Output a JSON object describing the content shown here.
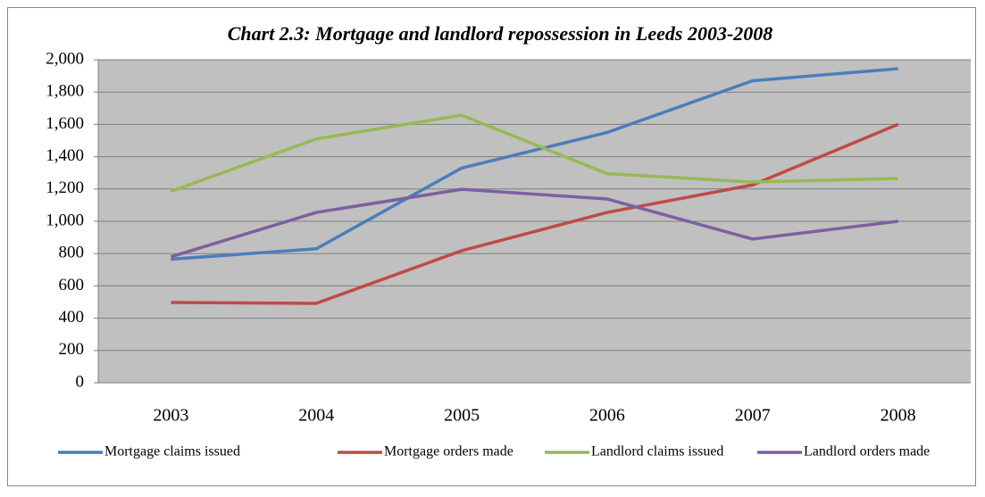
{
  "chart_data": {
    "type": "line",
    "title": "Chart 2.3: Mortgage and landlord repossession in Leeds 2003-2008",
    "categories": [
      "2003",
      "2004",
      "2005",
      "2006",
      "2007",
      "2008"
    ],
    "series": [
      {
        "name": "Mortgage claims issued",
        "color": "#4a7ebb",
        "values": [
          765,
          830,
          1330,
          1550,
          1870,
          1945
        ]
      },
      {
        "name": "Mortgage orders made",
        "color": "#be4b48",
        "values": [
          497,
          492,
          818,
          1055,
          1225,
          1600
        ]
      },
      {
        "name": "Landlord claims issued",
        "color": "#98b954",
        "values": [
          1185,
          1510,
          1657,
          1295,
          1243,
          1265
        ]
      },
      {
        "name": "Landlord orders made",
        "color": "#7d60a0",
        "values": [
          780,
          1055,
          1198,
          1138,
          890,
          1000
        ]
      }
    ],
    "ylim": [
      0,
      2000
    ],
    "yticks": [
      0,
      200,
      400,
      600,
      800,
      {
        "value": 1000,
        "label": "1,000"
      },
      {
        "value": 1200,
        "label": "1,200"
      },
      {
        "value": 1400,
        "label": "1,400"
      },
      {
        "value": 1600,
        "label": "1,600"
      },
      {
        "value": 1800,
        "label": "1,800"
      },
      {
        "value": 2000,
        "label": "2,000"
      }
    ],
    "grid": true,
    "legend": "bottom"
  }
}
